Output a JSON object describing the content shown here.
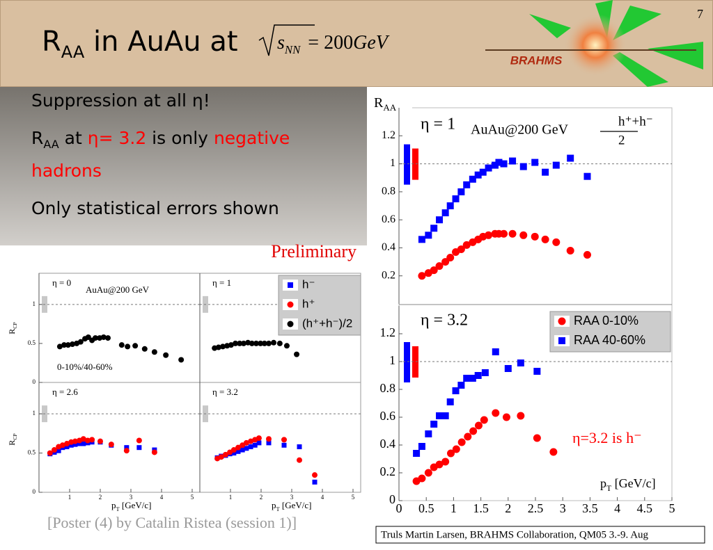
{
  "slide": {
    "number": "7",
    "title": [
      {
        "text": "R"
      },
      {
        "text": "AA",
        "sub": true
      },
      {
        "text": " in AuAu at"
      }
    ],
    "formula": [
      {
        "text": "s"
      },
      {
        "text": "NN",
        "sub": true
      },
      {
        "text": " = 200"
      },
      {
        "text": "GeV"
      }
    ],
    "logo": "BRAHMS",
    "bullets": [
      [
        {
          "text": "Suppression at all η!"
        }
      ],
      [
        {
          "text": "R"
        },
        {
          "text": "AA",
          "sub": true
        },
        {
          "text": " at "
        },
        {
          "text": "η= 3.2",
          "color": "#ff0000"
        },
        {
          "text": " is only "
        },
        {
          "text": "negative hadrons",
          "color": "#ff0000"
        }
      ],
      [
        {
          "text": "Only statistical errors shown"
        }
      ]
    ],
    "preliminary": "Preliminary",
    "poster": "[Poster (4) by Catalin Ristea (session 1)]",
    "footer": "Truls Martin Larsen, BRAHMS Collaboration, QM05 3.-9. Aug"
  },
  "chart_data": [
    {
      "type": "scatter",
      "ylabel": [
        "R",
        "AA"
      ],
      "annotations": [
        {
          "text": "η = 1"
        },
        {
          "text": "AuAu@200 GeV"
        },
        {
          "text": "h⁺+h⁻"
        },
        {
          "text": "2"
        }
      ],
      "xlim": [
        0,
        5
      ],
      "ylim": [
        0,
        1.4
      ],
      "yticks": [
        0.2,
        0.4,
        0.6,
        0.8,
        1,
        1.2
      ],
      "hline": 1,
      "series": [
        {
          "color": "#0000ff",
          "marker": "square",
          "x": [
            0.42,
            0.54,
            0.64,
            0.74,
            0.85,
            0.94,
            1.04,
            1.14,
            1.24,
            1.35,
            1.45,
            1.54,
            1.64,
            1.76,
            1.83,
            1.92,
            2.08,
            2.28,
            2.49,
            2.68,
            2.88,
            3.14,
            3.45
          ],
          "values": [
            0.46,
            0.49,
            0.54,
            0.6,
            0.65,
            0.7,
            0.75,
            0.8,
            0.85,
            0.89,
            0.92,
            0.94,
            0.97,
            0.99,
            1.01,
            1,
            1.02,
            0.98,
            1.01,
            0.94,
            0.99,
            1.04,
            0.91
          ]
        },
        {
          "color": "#ff0000",
          "marker": "circle",
          "x": [
            0.42,
            0.54,
            0.64,
            0.74,
            0.85,
            0.94,
            1.04,
            1.14,
            1.24,
            1.35,
            1.45,
            1.54,
            1.64,
            1.76,
            1.83,
            1.92,
            2.08,
            2.28,
            2.49,
            2.68,
            2.88,
            3.14,
            3.45
          ],
          "values": [
            0.2,
            0.22,
            0.24,
            0.27,
            0.3,
            0.33,
            0.37,
            0.39,
            0.42,
            0.44,
            0.46,
            0.48,
            0.49,
            0.5,
            0.5,
            0.5,
            0.5,
            0.49,
            0.48,
            0.46,
            0.44,
            0.38,
            0.35
          ]
        }
      ]
    },
    {
      "type": "scatter",
      "xlabel": [
        "p",
        "T",
        " [GeV/c]"
      ],
      "annotations": [
        {
          "text": "η = 3.2"
        },
        {
          "text": "η=3.2 is h⁻",
          "color": "#ff0000"
        }
      ],
      "legend": [
        {
          "name": "RAA 0-10%",
          "color": "#ff0000",
          "marker": "circle"
        },
        {
          "name": "RAA 40-60%",
          "color": "#0000ff",
          "marker": "square"
        }
      ],
      "xlim": [
        0,
        5
      ],
      "ylim": [
        0,
        1.4
      ],
      "xticks": [
        0,
        0.5,
        1,
        1.5,
        2,
        2.5,
        3,
        3.5,
        4,
        4.5,
        5
      ],
      "yticks": [
        0,
        0.2,
        0.4,
        0.6,
        0.8,
        1,
        1.2
      ],
      "hline": 1,
      "series": [
        {
          "color": "#0000ff",
          "marker": "square",
          "x": [
            0.32,
            0.42,
            0.54,
            0.64,
            0.74,
            0.85,
            0.94,
            1.04,
            1.14,
            1.24,
            1.35,
            1.45,
            1.58,
            1.77,
            2,
            2.23,
            2.53
          ],
          "values": [
            0.34,
            0.39,
            0.48,
            0.55,
            0.61,
            0.61,
            0.71,
            0.79,
            0.83,
            0.88,
            0.88,
            0.9,
            0.92,
            1.07,
            0.95,
            0.99,
            0.93
          ]
        },
        {
          "color": "#ff0000",
          "marker": "circle",
          "x": [
            0.32,
            0.42,
            0.54,
            0.64,
            0.74,
            0.85,
            0.95,
            1.05,
            1.15,
            1.26,
            1.36,
            1.46,
            1.56,
            1.77,
            1.97,
            2.23,
            2.53,
            2.83
          ],
          "values": [
            0.14,
            0.16,
            0.2,
            0.24,
            0.26,
            0.28,
            0.34,
            0.37,
            0.42,
            0.46,
            0.5,
            0.54,
            0.58,
            0.63,
            0.6,
            0.61,
            0.45,
            0.35
          ]
        }
      ]
    },
    {
      "type": "scatter",
      "ylabel": [
        "R",
        "CP"
      ],
      "annotations": [
        {
          "text": "η = 0"
        },
        {
          "text": "AuAu@200 GeV"
        },
        {
          "text": "0-10%/40-60%"
        }
      ],
      "xlim": [
        0,
        5.25
      ],
      "ylim": [
        0,
        1.4
      ],
      "yticks": [
        0,
        0.5,
        1
      ],
      "hline": 1,
      "series": [
        {
          "color": "#000000",
          "marker": "circle",
          "x": [
            0.68,
            0.82,
            0.95,
            1.09,
            1.23,
            1.36,
            1.5,
            1.61,
            1.73,
            1.84,
            1.98,
            2.11,
            2.25,
            2.7,
            2.89,
            3.14,
            3.45,
            3.77,
            4.14,
            4.64
          ],
          "values": [
            0.46,
            0.48,
            0.48,
            0.49,
            0.5,
            0.52,
            0.56,
            0.58,
            0.54,
            0.57,
            0.57,
            0.58,
            0.57,
            0.48,
            0.46,
            0.47,
            0.43,
            0.39,
            0.35,
            0.29
          ]
        }
      ]
    },
    {
      "type": "scatter",
      "annotations": [
        {
          "text": "η = 1"
        }
      ],
      "legend": [
        {
          "name": "h⁻",
          "color": "#0000ff",
          "marker": "square"
        },
        {
          "name": "h⁺",
          "color": "#ff0000",
          "marker": "circle"
        },
        {
          "name": "(h⁺+h⁻)/2",
          "color": "#000000",
          "marker": "circle"
        }
      ],
      "xlim": [
        0,
        5.25
      ],
      "ylim": [
        0,
        1.4
      ],
      "hline": 1,
      "series": [
        {
          "color": "#000000",
          "marker": "circle",
          "x": [
            0.48,
            0.61,
            0.75,
            0.89,
            1.02,
            1.16,
            1.3,
            1.43,
            1.57,
            1.7,
            1.84,
            1.98,
            2.11,
            2.25,
            2.41,
            2.61,
            2.84,
            3.16
          ],
          "values": [
            0.44,
            0.45,
            0.46,
            0.47,
            0.48,
            0.5,
            0.5,
            0.5,
            0.51,
            0.5,
            0.5,
            0.5,
            0.5,
            0.5,
            0.51,
            0.5,
            0.47,
            0.36
          ]
        }
      ]
    },
    {
      "type": "scatter",
      "ylabel": [
        "R",
        "CP"
      ],
      "xlabel": [
        "p",
        "T",
        " [GeV/c]"
      ],
      "annotations": [
        {
          "text": "η = 2.6"
        }
      ],
      "xlim": [
        0,
        5.25
      ],
      "ylim": [
        0,
        1.4
      ],
      "xticks": [
        1,
        2,
        3,
        4,
        5
      ],
      "yticks": [
        0,
        0.5,
        1
      ],
      "hline": 1,
      "series": [
        {
          "color": "#0000ff",
          "marker": "square",
          "x": [
            0.36,
            0.5,
            0.64,
            0.77,
            0.91,
            1.05,
            1.18,
            1.32,
            1.45,
            1.59,
            1.73,
            2,
            2.36,
            2.86,
            3.27,
            3.77
          ],
          "values": [
            0.49,
            0.51,
            0.53,
            0.57,
            0.58,
            0.6,
            0.61,
            0.62,
            0.62,
            0.63,
            0.64,
            0.64,
            0.6,
            0.57,
            0.57,
            0.54
          ]
        },
        {
          "color": "#ff0000",
          "marker": "circle",
          "x": [
            0.36,
            0.5,
            0.64,
            0.77,
            0.91,
            1.05,
            1.18,
            1.32,
            1.45,
            1.59,
            1.73,
            2,
            2.36,
            2.86,
            3.27,
            3.77
          ],
          "values": [
            0.5,
            0.54,
            0.58,
            0.6,
            0.62,
            0.64,
            0.65,
            0.66,
            0.68,
            0.66,
            0.67,
            0.65,
            0.61,
            0.53,
            0.66,
            0.51
          ]
        }
      ]
    },
    {
      "type": "scatter",
      "xlabel": [
        "p",
        "T",
        " [GeV/c]"
      ],
      "annotations": [
        {
          "text": "η = 3.2"
        }
      ],
      "xlim": [
        0,
        5.25
      ],
      "ylim": [
        0,
        1.4
      ],
      "xticks": [
        1,
        2,
        3,
        4,
        5
      ],
      "hline": 1,
      "series": [
        {
          "color": "#0000ff",
          "marker": "square",
          "x": [
            0.57,
            0.7,
            0.84,
            0.98,
            1.11,
            1.25,
            1.39,
            1.52,
            1.66,
            1.8,
            1.93,
            2.25,
            2.75,
            3.25,
            3.75
          ],
          "values": [
            0.44,
            0.46,
            0.47,
            0.49,
            0.5,
            0.52,
            0.54,
            0.56,
            0.58,
            0.6,
            0.63,
            0.63,
            0.6,
            0.58,
            0.13
          ]
        },
        {
          "color": "#ff0000",
          "marker": "circle",
          "x": [
            0.57,
            0.7,
            0.84,
            0.98,
            1.11,
            1.25,
            1.39,
            1.52,
            1.66,
            1.8,
            1.93,
            2.25,
            2.75,
            3.25,
            3.75
          ],
          "values": [
            0.43,
            0.45,
            0.48,
            0.51,
            0.54,
            0.57,
            0.6,
            0.63,
            0.65,
            0.67,
            0.69,
            0.68,
            0.67,
            0.41,
            0.22
          ]
        }
      ]
    }
  ]
}
